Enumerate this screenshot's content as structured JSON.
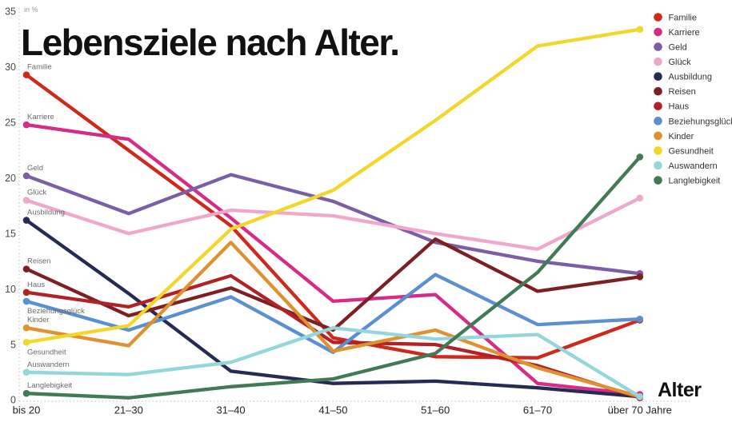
{
  "title": "Lebensziele nach Alter.",
  "unit_label": "in %",
  "x_axis_title": "Alter",
  "chart_data": {
    "type": "line",
    "title": "Lebensziele nach Alter.",
    "xlabel": "Alter",
    "ylabel": "in %",
    "ylim": [
      0,
      35
    ],
    "yticks": [
      0,
      5,
      10,
      15,
      20,
      25,
      30,
      35
    ],
    "grid": false,
    "legend_position": "top-right",
    "categories": [
      "bis 20",
      "21–30",
      "31–40",
      "41–50",
      "51–60",
      "61–70",
      "über 70 Jahre"
    ],
    "series": [
      {
        "name": "Familie",
        "color": "#cf291c",
        "values": [
          29.3,
          22.5,
          15.7,
          5.6,
          3.9,
          3.8,
          7.2
        ]
      },
      {
        "name": "Karriere",
        "color": "#d62b87",
        "values": [
          24.8,
          23.5,
          16.4,
          8.9,
          9.5,
          1.5,
          0.5
        ]
      },
      {
        "name": "Geld",
        "color": "#7b5ea7",
        "values": [
          20.2,
          16.8,
          20.3,
          17.9,
          14.2,
          12.5,
          11.4
        ]
      },
      {
        "name": "Glück",
        "color": "#efa8cb",
        "values": [
          18.0,
          15.0,
          17.1,
          16.6,
          15.0,
          13.6,
          18.2
        ]
      },
      {
        "name": "Ausbildung",
        "color": "#252b52",
        "values": [
          16.2,
          9.6,
          2.6,
          1.5,
          1.7,
          1.1,
          0.3
        ]
      },
      {
        "name": "Reisen",
        "color": "#7d2023",
        "values": [
          11.8,
          7.6,
          10.1,
          6.3,
          14.5,
          9.8,
          11.1
        ]
      },
      {
        "name": "Haus",
        "color": "#b22126",
        "values": [
          9.7,
          8.4,
          11.2,
          5.2,
          5.0,
          3.1,
          0.2
        ]
      },
      {
        "name": "Beziehungsglück",
        "color": "#5a8fd1",
        "values": [
          8.9,
          6.3,
          9.3,
          4.3,
          11.3,
          6.8,
          7.3
        ]
      },
      {
        "name": "Kinder",
        "color": "#de912e",
        "values": [
          6.5,
          4.9,
          14.2,
          4.4,
          6.3,
          2.9,
          0.3
        ]
      },
      {
        "name": "Gesundheit",
        "color": "#f4d62a",
        "values": [
          5.2,
          6.7,
          15.4,
          18.9,
          25.2,
          31.9,
          33.4
        ]
      },
      {
        "name": "Auswandern",
        "color": "#93d6dc",
        "values": [
          2.5,
          2.3,
          3.4,
          6.5,
          5.5,
          5.9,
          0.3
        ]
      },
      {
        "name": "Langlebigkeit",
        "color": "#417a55",
        "values": [
          0.6,
          0.2,
          1.2,
          1.9,
          4.2,
          11.5,
          21.9
        ]
      }
    ]
  }
}
